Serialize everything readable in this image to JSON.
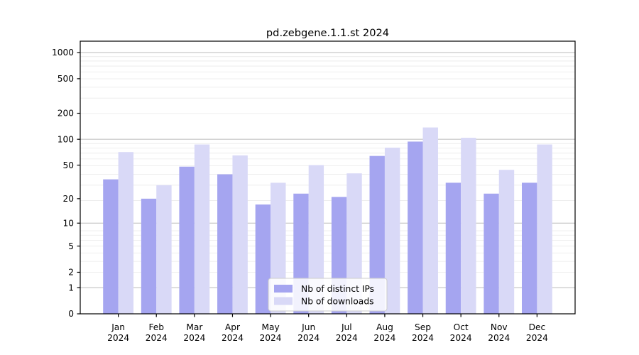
{
  "chart_data": {
    "type": "bar",
    "title": "pd.zebgene.1.1.st 2024",
    "categories": [
      "Jan",
      "Feb",
      "Mar",
      "Apr",
      "May",
      "Jun",
      "Jul",
      "Aug",
      "Sep",
      "Oct",
      "Nov",
      "Dec"
    ],
    "year_label": "2024",
    "series": [
      {
        "name": "Nb of distinct IPs",
        "color": "#a5a5f0",
        "values": [
          34,
          20,
          48,
          39,
          17,
          23,
          21,
          64,
          94,
          31,
          23,
          31
        ]
      },
      {
        "name": "Nb of downloads",
        "color": "#d9d9f7",
        "values": [
          71,
          29,
          87,
          65,
          31,
          50,
          40,
          80,
          137,
          104,
          44,
          87
        ]
      }
    ],
    "xlabel": "",
    "ylabel": "",
    "yscale": "log1p",
    "yticks": [
      0,
      1,
      2,
      5,
      10,
      20,
      50,
      100,
      200,
      500,
      1000
    ],
    "ylim": [
      0,
      1330
    ],
    "grid": {
      "major_at": [
        1,
        10,
        100,
        1000
      ],
      "major_color": "#bbbbbb",
      "minor_color": "#eaeaea",
      "grid_on": true
    },
    "legend": {
      "position": "lower center",
      "entries": [
        "Nb of distinct IPs",
        "Nb of downloads"
      ],
      "border_color": "#cccccc",
      "background": "rgba(255,255,255,0.85)"
    },
    "axis_color": "#000000"
  }
}
